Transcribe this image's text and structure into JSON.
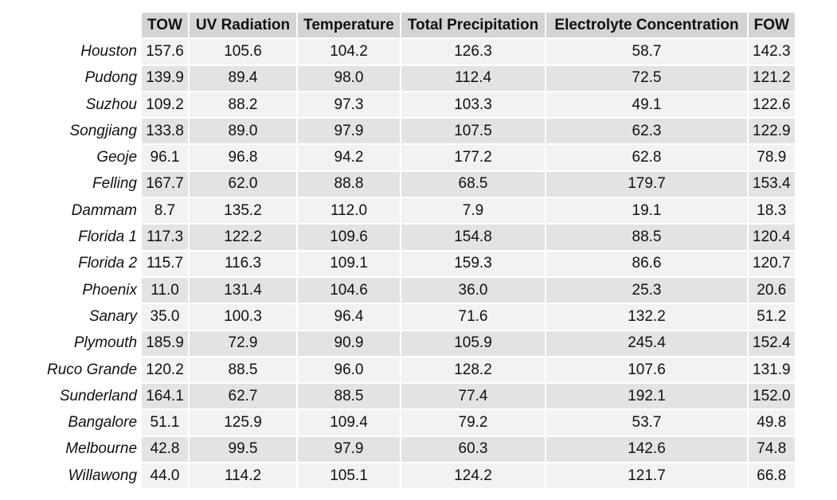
{
  "chart_data": {
    "type": "table",
    "columns": [
      "TOW",
      "UV Radiation",
      "Temperature",
      "Total Precipitation",
      "Electrolyte Concentration",
      "FOW"
    ],
    "rows": [
      {
        "label": "Houston",
        "values": [
          "157.6",
          "105.6",
          "104.2",
          "126.3",
          "58.7",
          "142.3"
        ]
      },
      {
        "label": "Pudong",
        "values": [
          "139.9",
          "89.4",
          "98.0",
          "112.4",
          "72.5",
          "121.2"
        ]
      },
      {
        "label": "Suzhou",
        "values": [
          "109.2",
          "88.2",
          "97.3",
          "103.3",
          "49.1",
          "122.6"
        ]
      },
      {
        "label": "Songjiang",
        "values": [
          "133.8",
          "89.0",
          "97.9",
          "107.5",
          "62.3",
          "122.9"
        ]
      },
      {
        "label": "Geoje",
        "values": [
          "96.1",
          "96.8",
          "94.2",
          "177.2",
          "62.8",
          "78.9"
        ]
      },
      {
        "label": "Felling",
        "values": [
          "167.7",
          "62.0",
          "88.8",
          "68.5",
          "179.7",
          "153.4"
        ]
      },
      {
        "label": "Dammam",
        "values": [
          "8.7",
          "135.2",
          "112.0",
          "7.9",
          "19.1",
          "18.3"
        ]
      },
      {
        "label": "Florida 1",
        "values": [
          "117.3",
          "122.2",
          "109.6",
          "154.8",
          "88.5",
          "120.4"
        ]
      },
      {
        "label": "Florida 2",
        "values": [
          "115.7",
          "116.3",
          "109.1",
          "159.3",
          "86.6",
          "120.7"
        ]
      },
      {
        "label": "Phoenix",
        "values": [
          "11.0",
          "131.4",
          "104.6",
          "36.0",
          "25.3",
          "20.6"
        ]
      },
      {
        "label": "Sanary",
        "values": [
          "35.0",
          "100.3",
          "96.4",
          "71.6",
          "132.2",
          "51.2"
        ]
      },
      {
        "label": "Plymouth",
        "values": [
          "185.9",
          "72.9",
          "90.9",
          "105.9",
          "245.4",
          "152.4"
        ]
      },
      {
        "label": "Ruco Grande",
        "values": [
          "120.2",
          "88.5",
          "96.0",
          "128.2",
          "107.6",
          "131.9"
        ]
      },
      {
        "label": "Sunderland",
        "values": [
          "164.1",
          "62.7",
          "88.5",
          "77.4",
          "192.1",
          "152.0"
        ]
      },
      {
        "label": "Bangalore",
        "values": [
          "51.1",
          "125.9",
          "109.4",
          "79.2",
          "53.7",
          "49.8"
        ]
      },
      {
        "label": "Melbourne",
        "values": [
          "42.8",
          "99.5",
          "97.9",
          "60.3",
          "142.6",
          "74.8"
        ]
      },
      {
        "label": "Willawong",
        "values": [
          "44.0",
          "114.2",
          "105.1",
          "124.2",
          "121.7",
          "66.8"
        ]
      }
    ],
    "colors": {
      "header_bg": "#d4d4d4",
      "row_light": "#f2f2f2",
      "row_dark": "#e3e3e3"
    }
  }
}
